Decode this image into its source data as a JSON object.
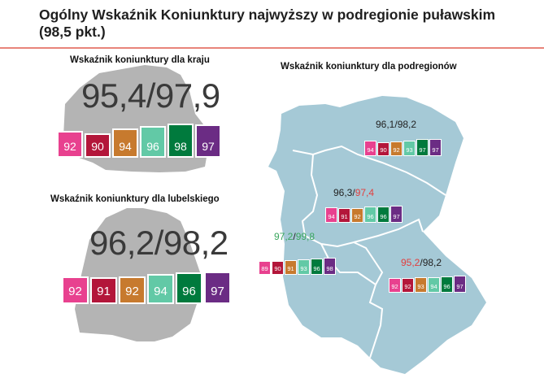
{
  "title": "Ogólny Wskaźnik Koniunktury najwyższy w podregionie puławskim (98,5 pkt.)",
  "colors": {
    "magenta": "#e8418f",
    "crimson": "#b3163a",
    "orange": "#c77a2e",
    "teal": "#62c9a6",
    "green": "#007a3d",
    "purple": "#6b2c84",
    "red_text": "#e33d3d",
    "green_text": "#3aa65e",
    "map_country": "#b4b4b4",
    "map_regions": "#a5c9d6"
  },
  "country": {
    "heading": "Wskaźnik koniunktury dla kraju",
    "value": "95,4/97,9",
    "boxes": [
      {
        "label": "92",
        "color": "#e8418f"
      },
      {
        "label": "90",
        "color": "#b3163a"
      },
      {
        "label": "94",
        "color": "#c77a2e"
      },
      {
        "label": "96",
        "color": "#62c9a6"
      },
      {
        "label": "98",
        "color": "#007a3d"
      },
      {
        "label": "97",
        "color": "#6b2c84"
      }
    ]
  },
  "province": {
    "heading": "Wskaźnik koniunktury dla  lubelskiego",
    "value": "96,2/98,2",
    "boxes": [
      {
        "label": "92",
        "color": "#e8418f"
      },
      {
        "label": "91",
        "color": "#b3163a"
      },
      {
        "label": "92",
        "color": "#c77a2e"
      },
      {
        "label": "94",
        "color": "#62c9a6"
      },
      {
        "label": "96",
        "color": "#007a3d"
      },
      {
        "label": "97",
        "color": "#6b2c84"
      }
    ]
  },
  "subregions_heading": "Wskaźnik koniunktury dla podregionów",
  "subregions": [
    {
      "value_a": "96,1",
      "sep": "/",
      "value_b": "98,2",
      "boxes": [
        {
          "label": "94",
          "color": "#e8418f"
        },
        {
          "label": "90",
          "color": "#b3163a"
        },
        {
          "label": "92",
          "color": "#c77a2e"
        },
        {
          "label": "93",
          "color": "#62c9a6"
        },
        {
          "label": "97",
          "color": "#007a3d"
        },
        {
          "label": "97",
          "color": "#6b2c84"
        }
      ]
    },
    {
      "value_a": "96,3",
      "sep": "/",
      "value_b": "97,4",
      "value_b_color": "#e33d3d",
      "boxes": [
        {
          "label": "94",
          "color": "#e8418f"
        },
        {
          "label": "91",
          "color": "#b3163a"
        },
        {
          "label": "92",
          "color": "#c77a2e"
        },
        {
          "label": "96",
          "color": "#62c9a6"
        },
        {
          "label": "96",
          "color": "#007a3d"
        },
        {
          "label": "97",
          "color": "#6b2c84"
        }
      ]
    },
    {
      "value_a": "97,2",
      "value_a_color": "#3aa65e",
      "sep": "/",
      "value_b": "99,8",
      "value_b_color": "#3aa65e",
      "boxes": [
        {
          "label": "89",
          "color": "#e8418f"
        },
        {
          "label": "90",
          "color": "#b3163a"
        },
        {
          "label": "91",
          "color": "#c77a2e"
        },
        {
          "label": "93",
          "color": "#62c9a6"
        },
        {
          "label": "96",
          "color": "#007a3d"
        },
        {
          "label": "98",
          "color": "#6b2c84"
        }
      ]
    },
    {
      "value_a": "95,2",
      "value_a_color": "#e33d3d",
      "sep": "/",
      "value_b": "98,2",
      "boxes": [
        {
          "label": "92",
          "color": "#e8418f"
        },
        {
          "label": "92",
          "color": "#b3163a"
        },
        {
          "label": "93",
          "color": "#c77a2e"
        },
        {
          "label": "94",
          "color": "#62c9a6"
        },
        {
          "label": "96",
          "color": "#007a3d"
        },
        {
          "label": "97",
          "color": "#6b2c84"
        }
      ]
    }
  ]
}
